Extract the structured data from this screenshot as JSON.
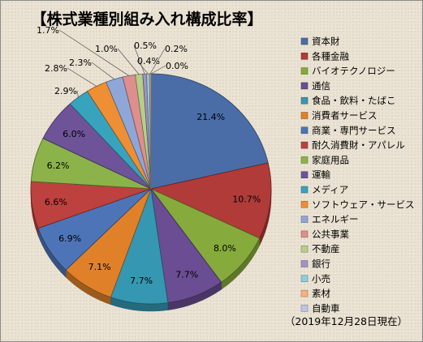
{
  "chart_data": {
    "type": "pie",
    "title": "【株式業種別組み入れ構成比率】",
    "date_note": "（2019年12月28日現在）",
    "legend_position": "right",
    "series": [
      {
        "name": "資本財",
        "value": 21.4,
        "label": "21.4%",
        "color": "#4a6da8"
      },
      {
        "name": "各種金融",
        "value": 10.7,
        "label": "10.7%",
        "color": "#b13b38"
      },
      {
        "name": "バイオテクノロジー",
        "value": 8.0,
        "label": "8.0%",
        "color": "#86ab3c"
      },
      {
        "name": "通信",
        "value": 7.7,
        "label": "7.7%",
        "color": "#6a4d92"
      },
      {
        "name": "食品・飲料・たばこ",
        "value": 7.7,
        "label": "7.7%",
        "color": "#3597b2"
      },
      {
        "name": "消費者サービス",
        "value": 7.1,
        "label": "7.1%",
        "color": "#e0812a"
      },
      {
        "name": "商業・専門サービス",
        "value": 6.9,
        "label": "6.9%",
        "color": "#4e74b8"
      },
      {
        "name": "耐久消費財・アパレル",
        "value": 6.6,
        "label": "6.6%",
        "color": "#bd413e"
      },
      {
        "name": "家庭用品",
        "value": 6.2,
        "label": "6.2%",
        "color": "#8bb34a"
      },
      {
        "name": "運輸",
        "value": 6.0,
        "label": "6.0%",
        "color": "#6e5399"
      },
      {
        "name": "メディア",
        "value": 2.9,
        "label": "2.9%",
        "color": "#38a3bd"
      },
      {
        "name": "ソフトウェア・サービス",
        "value": 2.8,
        "label": "2.8%",
        "color": "#ee8f35"
      },
      {
        "name": "エネルギー",
        "value": 2.3,
        "label": "2.3%",
        "color": "#8ea7d8"
      },
      {
        "name": "公共事業",
        "value": 1.7,
        "label": "1.7%",
        "color": "#dc8f8d"
      },
      {
        "name": "不動産",
        "value": 1.0,
        "label": "1.0%",
        "color": "#b5cf8a"
      },
      {
        "name": "銀行",
        "value": 0.5,
        "label": "0.5%",
        "color": "#a493c2"
      },
      {
        "name": "小売",
        "value": 0.4,
        "label": "0.4%",
        "color": "#8fcde0"
      },
      {
        "name": "素材",
        "value": 0.2,
        "label": "0.2%",
        "color": "#f6b27a"
      },
      {
        "name": "自動車",
        "value": 0.0,
        "label": "0.0%",
        "color": "#b6c8e4"
      }
    ]
  }
}
